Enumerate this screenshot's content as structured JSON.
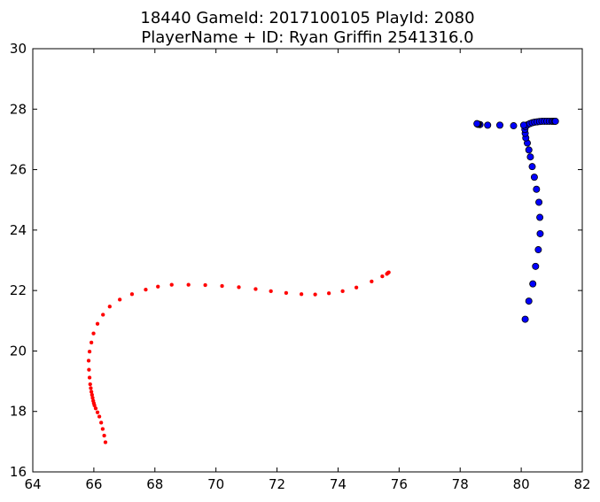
{
  "chart_data": {
    "type": "scatter",
    "title_line1": "18440 GameId: 2017100105 PlayId: 2080",
    "title_line2": "PlayerName + ID: Ryan Griffin 2541316.0",
    "xlabel": "",
    "ylabel": "",
    "xlim": [
      64,
      82
    ],
    "ylim": [
      16,
      30
    ],
    "xticks": [
      64,
      66,
      68,
      70,
      72,
      74,
      76,
      78,
      80,
      82
    ],
    "yticks": [
      16,
      18,
      20,
      22,
      24,
      26,
      28,
      30
    ],
    "grid": false,
    "series": [
      {
        "color": "#ff0000",
        "marker": "small-circle",
        "points": [
          [
            66.38,
            16.98
          ],
          [
            66.34,
            17.2
          ],
          [
            66.29,
            17.42
          ],
          [
            66.24,
            17.63
          ],
          [
            66.18,
            17.83
          ],
          [
            66.12,
            17.97
          ],
          [
            66.06,
            18.1
          ],
          [
            66.02,
            18.2
          ],
          [
            66.0,
            18.27
          ],
          [
            65.98,
            18.35
          ],
          [
            65.96,
            18.45
          ],
          [
            65.94,
            18.55
          ],
          [
            65.92,
            18.65
          ],
          [
            65.9,
            18.77
          ],
          [
            65.88,
            18.9
          ],
          [
            65.86,
            19.12
          ],
          [
            65.84,
            19.38
          ],
          [
            65.83,
            19.68
          ],
          [
            65.86,
            19.98
          ],
          [
            65.92,
            20.28
          ],
          [
            65.99,
            20.58
          ],
          [
            66.12,
            20.9
          ],
          [
            66.3,
            21.2
          ],
          [
            66.52,
            21.47
          ],
          [
            66.85,
            21.7
          ],
          [
            67.25,
            21.88
          ],
          [
            67.7,
            22.03
          ],
          [
            68.1,
            22.13
          ],
          [
            68.55,
            22.19
          ],
          [
            69.1,
            22.19
          ],
          [
            69.65,
            22.18
          ],
          [
            70.2,
            22.15
          ],
          [
            70.75,
            22.11
          ],
          [
            71.3,
            22.05
          ],
          [
            71.8,
            21.98
          ],
          [
            72.3,
            21.92
          ],
          [
            72.8,
            21.88
          ],
          [
            73.25,
            21.87
          ],
          [
            73.7,
            21.91
          ],
          [
            74.15,
            21.98
          ],
          [
            74.6,
            22.1
          ],
          [
            75.1,
            22.3
          ],
          [
            75.45,
            22.47
          ],
          [
            75.6,
            22.55
          ],
          [
            75.63,
            22.58
          ],
          [
            75.66,
            22.6
          ]
        ]
      },
      {
        "color": "#0000ff",
        "marker": "circle",
        "points": [
          [
            80.13,
            21.05
          ],
          [
            80.25,
            21.65
          ],
          [
            80.38,
            22.22
          ],
          [
            80.47,
            22.8
          ],
          [
            80.56,
            23.35
          ],
          [
            80.62,
            23.88
          ],
          [
            80.61,
            24.42
          ],
          [
            80.58,
            24.92
          ],
          [
            80.5,
            25.35
          ],
          [
            80.43,
            25.75
          ],
          [
            80.36,
            26.1
          ],
          [
            80.3,
            26.42
          ],
          [
            80.25,
            26.65
          ],
          [
            80.2,
            26.88
          ],
          [
            80.15,
            27.05
          ],
          [
            80.13,
            27.2
          ],
          [
            80.12,
            27.33
          ],
          [
            80.14,
            27.42
          ],
          [
            80.2,
            27.48
          ],
          [
            80.28,
            27.52
          ],
          [
            80.36,
            27.55
          ],
          [
            80.44,
            27.57
          ],
          [
            80.52,
            27.58
          ],
          [
            80.6,
            27.59
          ],
          [
            80.68,
            27.6
          ],
          [
            80.76,
            27.6
          ],
          [
            80.84,
            27.6
          ],
          [
            80.92,
            27.6
          ],
          [
            81.0,
            27.6
          ],
          [
            81.05,
            27.6
          ],
          [
            81.1,
            27.6
          ],
          [
            81.12,
            27.6
          ],
          [
            80.08,
            27.47
          ],
          [
            79.75,
            27.45
          ],
          [
            79.3,
            27.47
          ],
          [
            78.9,
            27.47
          ],
          [
            78.65,
            27.49
          ],
          [
            78.6,
            27.5
          ],
          [
            78.58,
            27.5
          ],
          [
            78.56,
            27.51
          ],
          [
            78.55,
            27.52
          ]
        ]
      }
    ]
  }
}
